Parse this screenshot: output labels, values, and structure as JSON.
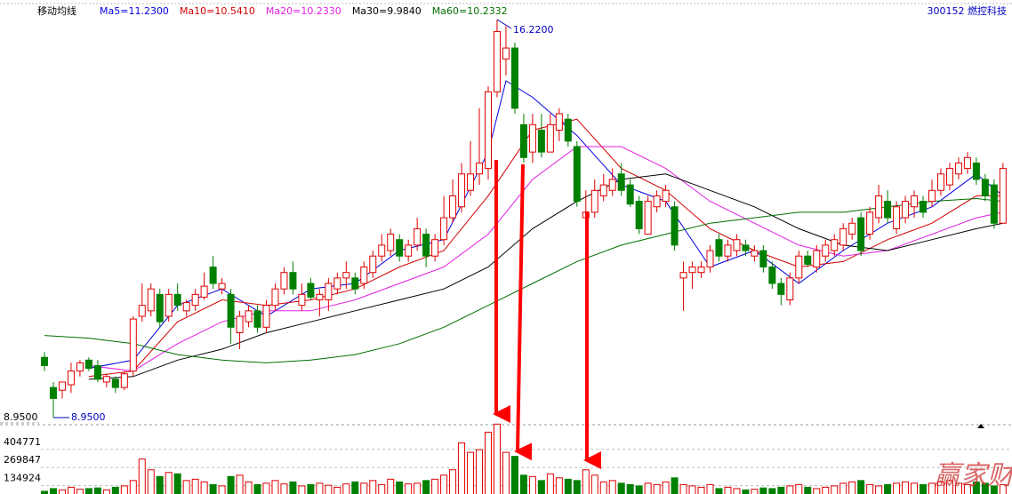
{
  "chart_data": {
    "type": "candlestick",
    "indicator_label": "移动均线",
    "stock": "300152 燃控科技",
    "watermark": "赢家财富网",
    "annotations": [
      "16.2200",
      "8.9500"
    ],
    "ylim": [
      8.95,
      16.22
    ],
    "yticks": [
      {
        "value": 8.95,
        "label": "8.9500"
      }
    ],
    "up_color": "#e00000",
    "down_color": "#008000",
    "open": [
      10.05,
      9.5,
      9.45,
      9.55,
      9.8,
      10.0,
      9.9,
      9.6,
      9.65,
      9.5,
      9.8,
      10.8,
      10.9,
      11.2,
      10.8,
      11.2,
      10.9,
      11.0,
      11.15,
      11.7,
      11.3,
      11.2,
      10.5,
      10.7,
      10.9,
      10.6,
      11.0,
      11.3,
      11.6,
      11.0,
      11.4,
      11.1,
      11.1,
      11.3,
      11.5,
      11.5,
      11.4,
      11.6,
      11.9,
      12.0,
      12.2,
      11.9,
      12.1,
      12.3,
      11.9,
      12.2,
      12.6,
      12.8,
      13.1,
      13.4,
      13.5,
      14.9,
      15.5,
      15.7,
      14.3,
      13.8,
      14.2,
      13.8,
      14.2,
      14.4,
      13.9,
      12.6,
      12.7,
      13.0,
      13.1,
      13.4,
      13.2,
      12.9,
      12.3,
      12.8,
      12.9,
      12.8,
      11.5,
      11.6,
      11.6,
      11.7,
      12.2,
      11.9,
      12.0,
      12.1,
      11.9,
      12.0,
      11.7,
      11.4,
      11.1,
      11.5,
      11.9,
      11.7,
      11.9,
      12.0,
      12.1,
      12.3,
      12.6,
      12.3,
      12.6,
      12.9,
      12.4,
      12.6,
      12.8,
      12.9,
      12.9,
      13.1,
      13.2,
      13.4,
      13.5,
      13.6,
      13.3,
      13.2,
      12.5
    ],
    "high": [
      10.15,
      9.6,
      9.6,
      9.95,
      10.0,
      10.05,
      10.0,
      9.75,
      9.7,
      9.8,
      10.8,
      11.4,
      11.4,
      11.3,
      11.3,
      11.4,
      11.1,
      11.3,
      11.6,
      11.9,
      11.5,
      11.3,
      10.9,
      11.0,
      11.0,
      11.1,
      11.4,
      11.7,
      11.8,
      11.4,
      11.5,
      11.3,
      11.5,
      11.6,
      11.8,
      11.6,
      11.8,
      12.0,
      12.3,
      12.4,
      12.3,
      12.2,
      12.6,
      12.4,
      12.3,
      13.0,
      13.3,
      13.6,
      14.0,
      14.6,
      15.0,
      16.22,
      16.1,
      15.8,
      14.5,
      14.5,
      14.5,
      14.5,
      14.6,
      14.5,
      14.0,
      13.1,
      13.3,
      13.4,
      13.5,
      13.6,
      13.3,
      13.0,
      13.0,
      13.1,
      13.2,
      12.9,
      11.8,
      11.8,
      11.8,
      12.1,
      12.3,
      12.2,
      12.3,
      12.2,
      12.1,
      12.1,
      11.8,
      11.5,
      11.6,
      12.0,
      12.0,
      12.1,
      12.2,
      12.3,
      12.5,
      12.6,
      12.7,
      12.8,
      13.2,
      13.1,
      12.9,
      13.0,
      13.1,
      13.0,
      13.3,
      13.5,
      13.6,
      13.7,
      13.8,
      13.7,
      13.4,
      13.3,
      13.6
    ],
    "low": [
      9.8,
      8.95,
      9.3,
      9.4,
      9.7,
      9.8,
      9.6,
      9.5,
      9.4,
      9.45,
      9.7,
      10.7,
      10.8,
      10.6,
      10.7,
      10.9,
      10.8,
      10.9,
      11.1,
      11.3,
      11.2,
      10.3,
      10.2,
      10.6,
      10.5,
      10.5,
      10.9,
      11.2,
      11.2,
      10.9,
      11.1,
      10.8,
      10.9,
      11.2,
      11.3,
      11.2,
      11.3,
      11.5,
      11.8,
      11.9,
      11.8,
      11.8,
      12.0,
      11.7,
      11.8,
      12.1,
      12.5,
      12.7,
      13.0,
      13.2,
      13.3,
      14.8,
      15.2,
      14.5,
      13.6,
      13.6,
      13.7,
      13.8,
      14.0,
      13.9,
      12.8,
      11.9,
      12.6,
      12.9,
      13.0,
      13.0,
      12.8,
      12.3,
      12.3,
      12.7,
      12.8,
      12.0,
      10.9,
      11.3,
      11.5,
      11.6,
      11.8,
      11.8,
      11.9,
      11.9,
      11.8,
      11.6,
      11.3,
      11.0,
      11.0,
      11.4,
      11.7,
      11.6,
      11.8,
      11.9,
      12.0,
      12.2,
      11.9,
      12.2,
      12.5,
      12.5,
      12.3,
      12.5,
      12.6,
      12.6,
      12.8,
      13.0,
      13.1,
      13.3,
      13.4,
      13.2,
      12.9,
      12.4,
      12.5
    ],
    "close": [
      9.9,
      9.3,
      9.6,
      9.8,
      9.95,
      9.85,
      9.65,
      9.7,
      9.5,
      9.75,
      10.75,
      11.0,
      11.3,
      10.7,
      11.2,
      11.0,
      11.05,
      11.2,
      11.35,
      11.4,
      11.4,
      10.6,
      10.8,
      10.9,
      10.6,
      11.0,
      11.3,
      11.6,
      11.3,
      11.2,
      11.15,
      11.2,
      11.4,
      11.5,
      11.6,
      11.3,
      11.7,
      11.9,
      12.1,
      12.3,
      11.9,
      12.1,
      12.4,
      11.9,
      12.2,
      12.6,
      13.0,
      13.4,
      13.4,
      13.6,
      14.9,
      16.0,
      15.7,
      14.6,
      13.7,
      14.3,
      13.8,
      14.3,
      14.5,
      14.0,
      12.9,
      12.7,
      13.1,
      13.2,
      13.3,
      13.1,
      12.85,
      12.4,
      12.9,
      13.0,
      13.1,
      12.1,
      11.6,
      11.7,
      11.7,
      12.0,
      11.9,
      12.1,
      12.2,
      12.0,
      12.0,
      11.7,
      11.4,
      11.2,
      11.5,
      11.9,
      11.75,
      12.0,
      12.1,
      12.2,
      12.4,
      12.5,
      12.0,
      12.7,
      13.0,
      12.6,
      12.8,
      12.9,
      13.0,
      12.7,
      13.1,
      13.4,
      13.5,
      13.6,
      13.7,
      13.3,
      13.0,
      12.5,
      13.5
    ],
    "series": [
      {
        "name": "Ma5=11.2300",
        "color": "#0000e0",
        "x": [
          5,
          10,
          15,
          20,
          25,
          30,
          35,
          40,
          45,
          50,
          52,
          55,
          60,
          65,
          70,
          75,
          80,
          85,
          90,
          95,
          100,
          105,
          108
        ],
        "values": [
          9.85,
          10.0,
          11.0,
          11.3,
          10.8,
          11.3,
          11.4,
          12.0,
          12.2,
          13.8,
          15.1,
          14.8,
          14.1,
          13.2,
          12.9,
          11.7,
          12.0,
          11.4,
          12.0,
          12.5,
          12.8,
          13.4,
          13.0
        ]
      },
      {
        "name": "Ma10=10.5410",
        "color": "#d00000",
        "x": [
          5,
          10,
          15,
          20,
          25,
          30,
          35,
          40,
          45,
          50,
          55,
          60,
          65,
          70,
          75,
          80,
          85,
          90,
          95,
          100,
          105,
          108
        ],
        "values": [
          9.7,
          9.8,
          10.7,
          11.1,
          11.0,
          11.1,
          11.3,
          11.7,
          12.0,
          13.0,
          14.2,
          14.4,
          13.5,
          13.1,
          12.4,
          12.0,
          11.7,
          11.8,
          12.2,
          12.5,
          13.0,
          13.0
        ]
      },
      {
        "name": "Ma20=10.2330",
        "color": "#e020e0",
        "x": [
          5,
          10,
          15,
          20,
          25,
          30,
          35,
          40,
          45,
          50,
          55,
          60,
          65,
          70,
          75,
          80,
          85,
          90,
          95,
          100,
          105,
          108
        ],
        "values": [
          9.9,
          9.8,
          10.3,
          10.7,
          10.9,
          10.9,
          11.1,
          11.4,
          11.7,
          12.3,
          13.3,
          13.9,
          13.9,
          13.5,
          12.9,
          12.5,
          12.1,
          11.9,
          12.0,
          12.3,
          12.6,
          12.7
        ]
      },
      {
        "name": "Ma30=9.9840",
        "color": "#000000",
        "x": [
          5,
          10,
          15,
          20,
          25,
          30,
          35,
          40,
          45,
          50,
          55,
          60,
          65,
          70,
          75,
          80,
          85,
          90,
          95,
          100,
          105,
          108
        ],
        "values": [
          9.65,
          9.7,
          10.0,
          10.2,
          10.5,
          10.7,
          10.9,
          11.1,
          11.3,
          11.7,
          12.4,
          12.9,
          13.3,
          13.4,
          13.1,
          12.8,
          12.4,
          12.1,
          12.0,
          12.2,
          12.4,
          12.5
        ]
      },
      {
        "name": "Ma60=10.2332",
        "color": "#007000",
        "x": [
          0,
          5,
          10,
          15,
          20,
          25,
          30,
          35,
          40,
          45,
          50,
          55,
          60,
          65,
          70,
          75,
          80,
          85,
          90,
          95,
          100,
          105,
          108
        ],
        "values": [
          10.45,
          10.4,
          10.3,
          10.1,
          10.0,
          9.95,
          10.0,
          10.1,
          10.3,
          10.6,
          11.0,
          11.4,
          11.8,
          12.1,
          12.3,
          12.5,
          12.6,
          12.7,
          12.7,
          12.8,
          12.9,
          12.95,
          12.9
        ]
      }
    ],
    "volume": {
      "ylim": [
        0,
        535700
      ],
      "yticks": [
        134924,
        269847,
        404771
      ],
      "values": [
        40000,
        60000,
        50000,
        70000,
        55000,
        60000,
        65000,
        50000,
        70000,
        80000,
        120000,
        280000,
        200000,
        150000,
        180000,
        170000,
        120000,
        130000,
        110000,
        90000,
        80000,
        150000,
        160000,
        110000,
        90000,
        100000,
        120000,
        95000,
        110000,
        80000,
        90000,
        100000,
        85000,
        70000,
        95000,
        110000,
        100000,
        120000,
        90000,
        130000,
        110000,
        95000,
        100000,
        120000,
        130000,
        160000,
        200000,
        400000,
        330000,
        350000,
        480000,
        540000,
        330000,
        300000,
        160000,
        150000,
        120000,
        170000,
        140000,
        130000,
        120000,
        200000,
        160000,
        110000,
        120000,
        100000,
        90000,
        80000,
        100000,
        90000,
        110000,
        140000,
        90000,
        80000,
        70000,
        90000,
        60000,
        70000,
        60000,
        50000,
        55000,
        65000,
        60000,
        70000,
        80000,
        90000,
        70000,
        60000,
        70000,
        80000,
        100000,
        110000,
        120000,
        90000,
        80000,
        90000,
        100000,
        110000,
        100000,
        90000,
        100000,
        110000,
        120000,
        100000,
        90000,
        110000,
        100000,
        80000,
        90000
      ]
    }
  }
}
